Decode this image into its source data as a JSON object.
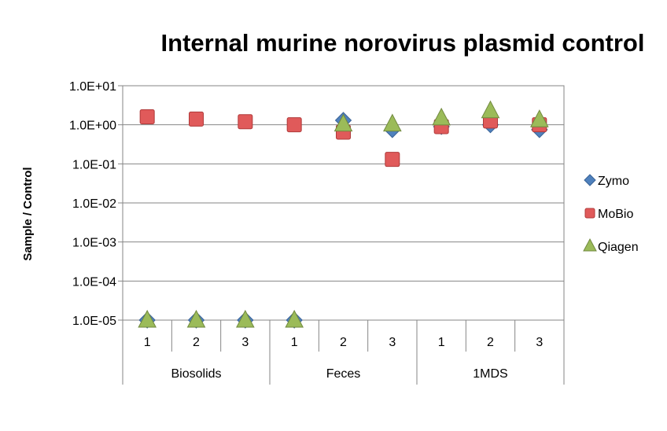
{
  "chart_data": {
    "type": "scatter",
    "title": "Internal murine norovirus plasmid control",
    "ylabel": "Sample / Control",
    "y_scale": "log",
    "ylim": [
      1e-05,
      10
    ],
    "y_ticks": [
      "1.0E+01",
      "1.0E+00",
      "1.0E-01",
      "1.0E-02",
      "1.0E-03",
      "1.0E-04",
      "1.0E-05"
    ],
    "grid": true,
    "legend_position": "right",
    "categories": [
      "1",
      "2",
      "3",
      "1",
      "2",
      "3",
      "1",
      "2",
      "3"
    ],
    "groups": [
      {
        "label": "Biosolids",
        "span": 3
      },
      {
        "label": "Feces",
        "span": 3
      },
      {
        "label": "1MDS",
        "span": 3
      }
    ],
    "series": [
      {
        "name": "Zymo",
        "marker": "diamond",
        "color": "#4F81BD",
        "values": [
          1e-05,
          1e-05,
          1e-05,
          1e-05,
          1.3,
          0.75,
          0.9,
          1.0,
          0.75
        ]
      },
      {
        "name": "MoBio",
        "marker": "square",
        "color": "#E05A5A",
        "values": [
          1.6,
          1.4,
          1.2,
          1.0,
          0.65,
          0.13,
          0.9,
          1.25,
          1.0
        ]
      },
      {
        "name": "Qiagen",
        "marker": "triangle",
        "color": "#9BBB59",
        "values": [
          1e-05,
          1e-05,
          1e-05,
          1e-05,
          1.05,
          1.05,
          1.5,
          2.3,
          1.35
        ]
      }
    ]
  }
}
